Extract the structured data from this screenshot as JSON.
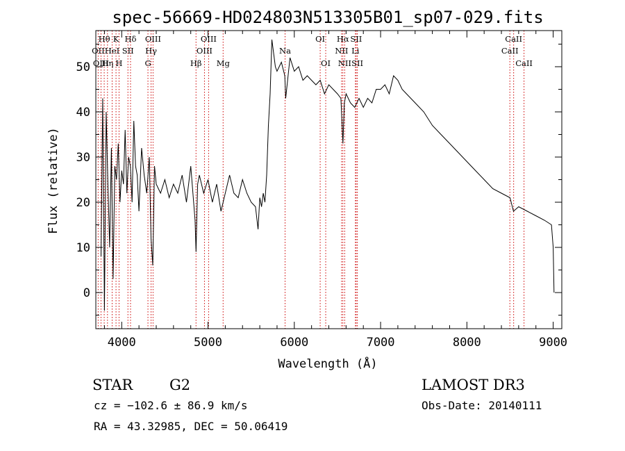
{
  "chart_data": {
    "type": "line",
    "title": "spec-56669-HD024803N513305B01_sp07-029.fits",
    "xlabel": "Wavelength (Å)",
    "ylabel": "Flux (relative)",
    "xlim": [
      3700,
      9100
    ],
    "ylim": [
      -8,
      58
    ],
    "xticks": [
      4000,
      5000,
      6000,
      7000,
      8000,
      9000
    ],
    "yticks": [
      0,
      10,
      20,
      30,
      40,
      50
    ],
    "grid": false,
    "series": [
      {
        "x": [
          3760,
          3780,
          3800,
          3820,
          3840,
          3860,
          3880,
          3900,
          3920,
          3940,
          3960,
          3980,
          4000,
          4020,
          4040,
          4060,
          4080,
          4100,
          4120,
          4140,
          4160,
          4180,
          4200,
          4230,
          4260,
          4290,
          4320,
          4340,
          4360,
          4380,
          4400,
          4450,
          4500,
          4550,
          4600,
          4650,
          4700,
          4750,
          4800,
          4850,
          4861,
          4880,
          4900,
          4950,
          5000,
          5050,
          5100,
          5150,
          5200,
          5250,
          5300,
          5350,
          5400,
          5450,
          5500,
          5550,
          5580,
          5600,
          5620,
          5640,
          5660,
          5680,
          5700,
          5720,
          5740,
          5760,
          5780,
          5800,
          5850,
          5890,
          5900,
          5950,
          6000,
          6050,
          6100,
          6150,
          6200,
          6250,
          6300,
          6350,
          6400,
          6450,
          6500,
          6540,
          6563,
          6580,
          6600,
          6650,
          6700,
          6750,
          6800,
          6850,
          6900,
          6950,
          7000,
          7050,
          7100,
          7150,
          7200,
          7250,
          7300,
          7400,
          7500,
          7600,
          7700,
          7800,
          7900,
          8000,
          8100,
          8200,
          8300,
          8400,
          8500,
          8540,
          8600,
          8700,
          8800,
          8900,
          8980,
          9000,
          9010
        ],
        "y": [
          8,
          43,
          -4,
          40,
          24,
          10,
          32,
          3,
          28,
          25,
          33,
          20,
          27,
          24,
          36,
          22,
          30,
          28,
          20,
          38,
          28,
          26,
          18,
          32,
          26,
          22,
          30,
          12,
          6,
          28,
          24,
          22,
          25,
          21,
          24,
          22,
          26,
          20,
          28,
          16,
          9,
          24,
          26,
          22,
          25,
          20,
          24,
          18,
          22,
          26,
          22,
          21,
          25,
          22,
          20,
          19,
          14,
          21,
          19,
          22,
          20,
          26,
          37,
          44,
          56,
          53,
          50,
          49,
          51,
          48,
          43,
          52,
          49,
          50,
          47,
          48,
          47,
          46,
          47,
          44,
          46,
          45,
          44,
          43,
          33,
          42,
          44,
          42,
          41,
          43,
          41,
          43,
          42,
          45,
          45,
          46,
          44,
          48,
          47,
          45,
          44,
          42,
          40,
          37,
          35,
          33,
          31,
          29,
          27,
          25,
          23,
          22,
          21,
          18,
          19,
          18,
          17,
          16,
          15,
          10,
          0
        ]
      }
    ],
    "lines": [
      {
        "label": "Hθ",
        "x": 3797,
        "row": 0
      },
      {
        "label": "OII",
        "x": 3727,
        "row": 1
      },
      {
        "label": "OIII",
        "x": 3760,
        "row": 2
      },
      {
        "label": "K",
        "x": 3934,
        "row": 0
      },
      {
        "label": "HeI",
        "x": 3889,
        "row": 1
      },
      {
        "label": "Hη",
        "x": 3835,
        "row": 2
      },
      {
        "label": "Hδ",
        "x": 4102,
        "row": 0
      },
      {
        "label": "SII",
        "x": 4072,
        "row": 1
      },
      {
        "label": "H",
        "x": 3969,
        "row": 2
      },
      {
        "label": "OIII",
        "x": 4363,
        "row": 0
      },
      {
        "label": "Hγ",
        "x": 4340,
        "row": 1
      },
      {
        "label": "G",
        "x": 4304,
        "row": 2
      },
      {
        "label": "OIII",
        "x": 5007,
        "row": 0
      },
      {
        "label": "OIII",
        "x": 4959,
        "row": 1
      },
      {
        "label": "Hβ",
        "x": 4861,
        "row": 2
      },
      {
        "label": "Mg",
        "x": 5175,
        "row": 2
      },
      {
        "label": "Na",
        "x": 5893,
        "row": 1
      },
      {
        "label": "OI",
        "x": 6300,
        "row": 0
      },
      {
        "label": "OI",
        "x": 6364,
        "row": 2
      },
      {
        "label": "Hα",
        "x": 6563,
        "row": 0
      },
      {
        "label": "NII",
        "x": 6548,
        "row": 1
      },
      {
        "label": "NII",
        "x": 6584,
        "row": 2
      },
      {
        "label": "SII",
        "x": 6717,
        "row": 0
      },
      {
        "label": "Li",
        "x": 6708,
        "row": 1
      },
      {
        "label": "SII",
        "x": 6731,
        "row": 2
      },
      {
        "label": "CaII",
        "x": 8542,
        "row": 0
      },
      {
        "label": "CaII",
        "x": 8498,
        "row": 1
      },
      {
        "label": "CaII",
        "x": 8662,
        "row": 2
      }
    ]
  },
  "info": {
    "class": "STAR",
    "subclass": "G2",
    "survey": "LAMOST DR3",
    "cz": "cz = −102.6 ± 86.9 km/s",
    "obs_date": "Obs-Date: 20140111",
    "coords": "RA =  43.32985, DEC =  50.06419"
  },
  "colors": {
    "spectrum": "#000000",
    "line_markers": "#cc0000",
    "axes": "#000000"
  }
}
